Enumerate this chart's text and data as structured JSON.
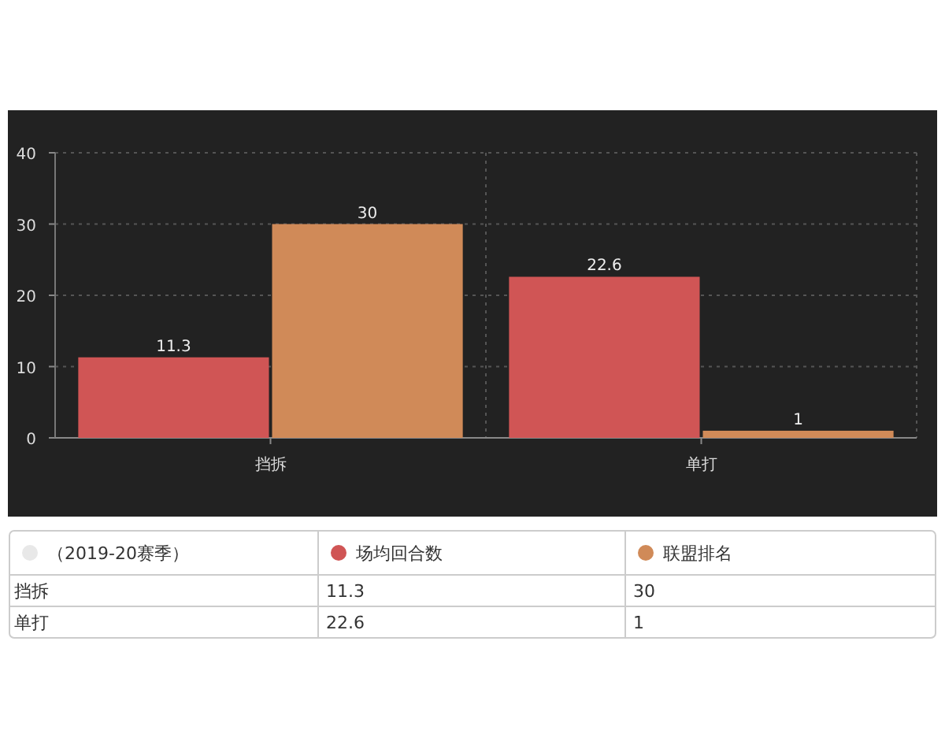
{
  "chart_data": {
    "type": "bar",
    "categories": [
      "挡拆",
      "单打"
    ],
    "series": [
      {
        "name": "场均回合数",
        "color": "#d05555",
        "values": [
          11.3,
          22.6
        ],
        "value_labels": [
          "11.3",
          "22.6"
        ]
      },
      {
        "name": "联盟排名",
        "color": "#d08a58",
        "values": [
          30,
          1
        ],
        "value_labels": [
          "30",
          "1"
        ]
      }
    ],
    "ylim": [
      0,
      40
    ],
    "yticks": [
      0,
      10,
      20,
      30,
      40
    ],
    "grid": true,
    "legend": "bottom",
    "legend_title": "（2019-20赛季）",
    "annotations": [
      "11.3",
      "30",
      "22.6",
      "1"
    ]
  }
}
